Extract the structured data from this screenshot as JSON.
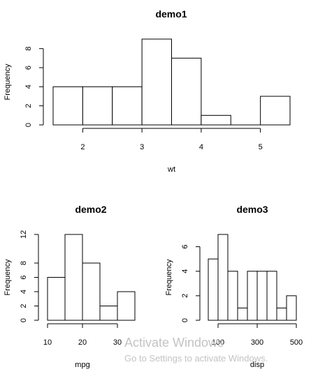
{
  "chart_data": [
    {
      "type": "bar",
      "title": "demo1",
      "xlabel": "wt",
      "ylabel": "Frequency",
      "breaks": [
        1.5,
        2.0,
        2.5,
        3.0,
        3.5,
        4.0,
        4.5,
        5.0,
        5.5
      ],
      "values": [
        4,
        4,
        4,
        9,
        7,
        1,
        0,
        3
      ],
      "xticks": [
        2,
        3,
        4,
        5
      ],
      "yticks": [
        0,
        2,
        4,
        6,
        8
      ],
      "xlim": [
        1.5,
        5.5
      ],
      "ylim": [
        0,
        9
      ]
    },
    {
      "type": "bar",
      "title": "demo2",
      "xlabel": "mpg",
      "ylabel": "Frequency",
      "breaks": [
        10,
        15,
        20,
        25,
        30,
        35
      ],
      "values": [
        6,
        12,
        8,
        2,
        4
      ],
      "xticks": [
        10,
        20,
        30
      ],
      "yticks": [
        0,
        2,
        4,
        6,
        8,
        12
      ],
      "xlim": [
        10,
        35
      ],
      "ylim": [
        0,
        12
      ]
    },
    {
      "type": "bar",
      "title": "demo3",
      "xlabel": "disp",
      "ylabel": "Frequency",
      "breaks": [
        50,
        100,
        150,
        200,
        250,
        300,
        350,
        400,
        450,
        500
      ],
      "values": [
        5,
        7,
        4,
        1,
        4,
        4,
        4,
        1,
        2
      ],
      "xticks": [
        100,
        300,
        500
      ],
      "yticks": [
        0,
        2,
        4,
        6
      ],
      "xlim": [
        50,
        500
      ],
      "ylim": [
        0,
        7
      ]
    }
  ],
  "overlay": {
    "watermark_title": "Activate Windows",
    "watermark_subtitle": "Go to Settings to activate Windows."
  }
}
